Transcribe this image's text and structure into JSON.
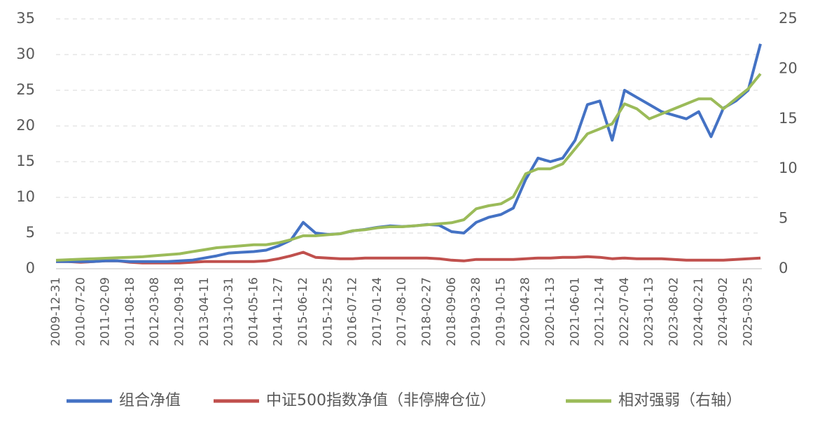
{
  "chart_data": {
    "type": "line",
    "categories": [
      "2009-12-31",
      null,
      "2010-07-20",
      null,
      "2011-02-09",
      null,
      "2011-08-18",
      null,
      "2012-03-08",
      null,
      "2012-09-18",
      null,
      "2013-04-11",
      null,
      "2013-10-31",
      null,
      "2014-05-16",
      null,
      "2014-11-27",
      null,
      "2015-06-12",
      null,
      "2015-12-25",
      null,
      "2016-07-12",
      null,
      "2017-01-24",
      null,
      "2017-08-10",
      null,
      "2018-02-27",
      null,
      "2018-09-06",
      null,
      "2019-03-28",
      null,
      "2019-10-15",
      null,
      "2020-04-28",
      null,
      "2020-11-13",
      null,
      "2021-06-01",
      null,
      "2021-12-14",
      null,
      "2022-07-04",
      null,
      "2023-01-13",
      null,
      "2023-08-02",
      null,
      "2024-02-21",
      null,
      "2024-09-02",
      null,
      "2025-03-25",
      null
    ],
    "series": [
      {
        "name": "组合净值",
        "color": "#4472c4",
        "axis": "y",
        "values": [
          1.0,
          1.0,
          1.0,
          1.0,
          1.1,
          1.1,
          1.0,
          1.0,
          1.0,
          1.0,
          1.1,
          1.2,
          1.5,
          1.8,
          2.2,
          2.3,
          2.4,
          2.6,
          3.2,
          4.0,
          6.5,
          5.0,
          4.8,
          4.9,
          5.3,
          5.5,
          5.8,
          6.0,
          5.9,
          6.0,
          6.2,
          6.1,
          5.2,
          5.0,
          6.5,
          7.2,
          7.6,
          8.5,
          12.5,
          15.5,
          15.0,
          15.5,
          18,
          23,
          23.5,
          18,
          25,
          24,
          23,
          22,
          21.5,
          21,
          22,
          18.5,
          22.5,
          23.5,
          25,
          31.5
        ]
      },
      {
        "name": "中证500指数净值（非停牌仓位）",
        "color": "#c0504d",
        "axis": "y",
        "values": [
          1.0,
          1.0,
          0.9,
          1.0,
          1.1,
          1.1,
          0.9,
          0.8,
          0.8,
          0.8,
          0.8,
          0.9,
          1.0,
          1.0,
          1.0,
          1.0,
          1.0,
          1.1,
          1.4,
          1.8,
          2.3,
          1.6,
          1.5,
          1.4,
          1.4,
          1.5,
          1.5,
          1.5,
          1.5,
          1.5,
          1.5,
          1.4,
          1.2,
          1.1,
          1.3,
          1.3,
          1.3,
          1.3,
          1.4,
          1.5,
          1.5,
          1.6,
          1.6,
          1.7,
          1.6,
          1.4,
          1.5,
          1.4,
          1.4,
          1.4,
          1.3,
          1.2,
          1.2,
          1.2,
          1.2,
          1.3,
          1.4,
          1.5
        ]
      },
      {
        "name": "相对强弱（右轴）",
        "color": "#9bbb59",
        "axis": "y2",
        "values": [
          0.85,
          0.9,
          0.95,
          1.0,
          1.05,
          1.1,
          1.15,
          1.2,
          1.3,
          1.4,
          1.5,
          1.7,
          1.9,
          2.1,
          2.2,
          2.3,
          2.4,
          2.4,
          2.6,
          2.9,
          3.3,
          3.3,
          3.4,
          3.5,
          3.8,
          3.9,
          4.1,
          4.2,
          4.2,
          4.3,
          4.4,
          4.5,
          4.6,
          4.9,
          6.0,
          6.3,
          6.5,
          7.2,
          9.5,
          10.0,
          10.0,
          10.5,
          12.0,
          13.5,
          14.0,
          14.5,
          16.5,
          16.0,
          15.0,
          15.5,
          16.0,
          16.5,
          17.0,
          17.0,
          16.0,
          17.0,
          18.0,
          19.5
        ]
      }
    ],
    "ylim": [
      0,
      35
    ],
    "yticks": [
      0,
      5,
      10,
      15,
      20,
      25,
      30,
      35
    ],
    "y2lim": [
      0,
      25
    ],
    "y2ticks": [
      0,
      5,
      10,
      15,
      20,
      25
    ],
    "grid": true,
    "legend": "bottom"
  }
}
